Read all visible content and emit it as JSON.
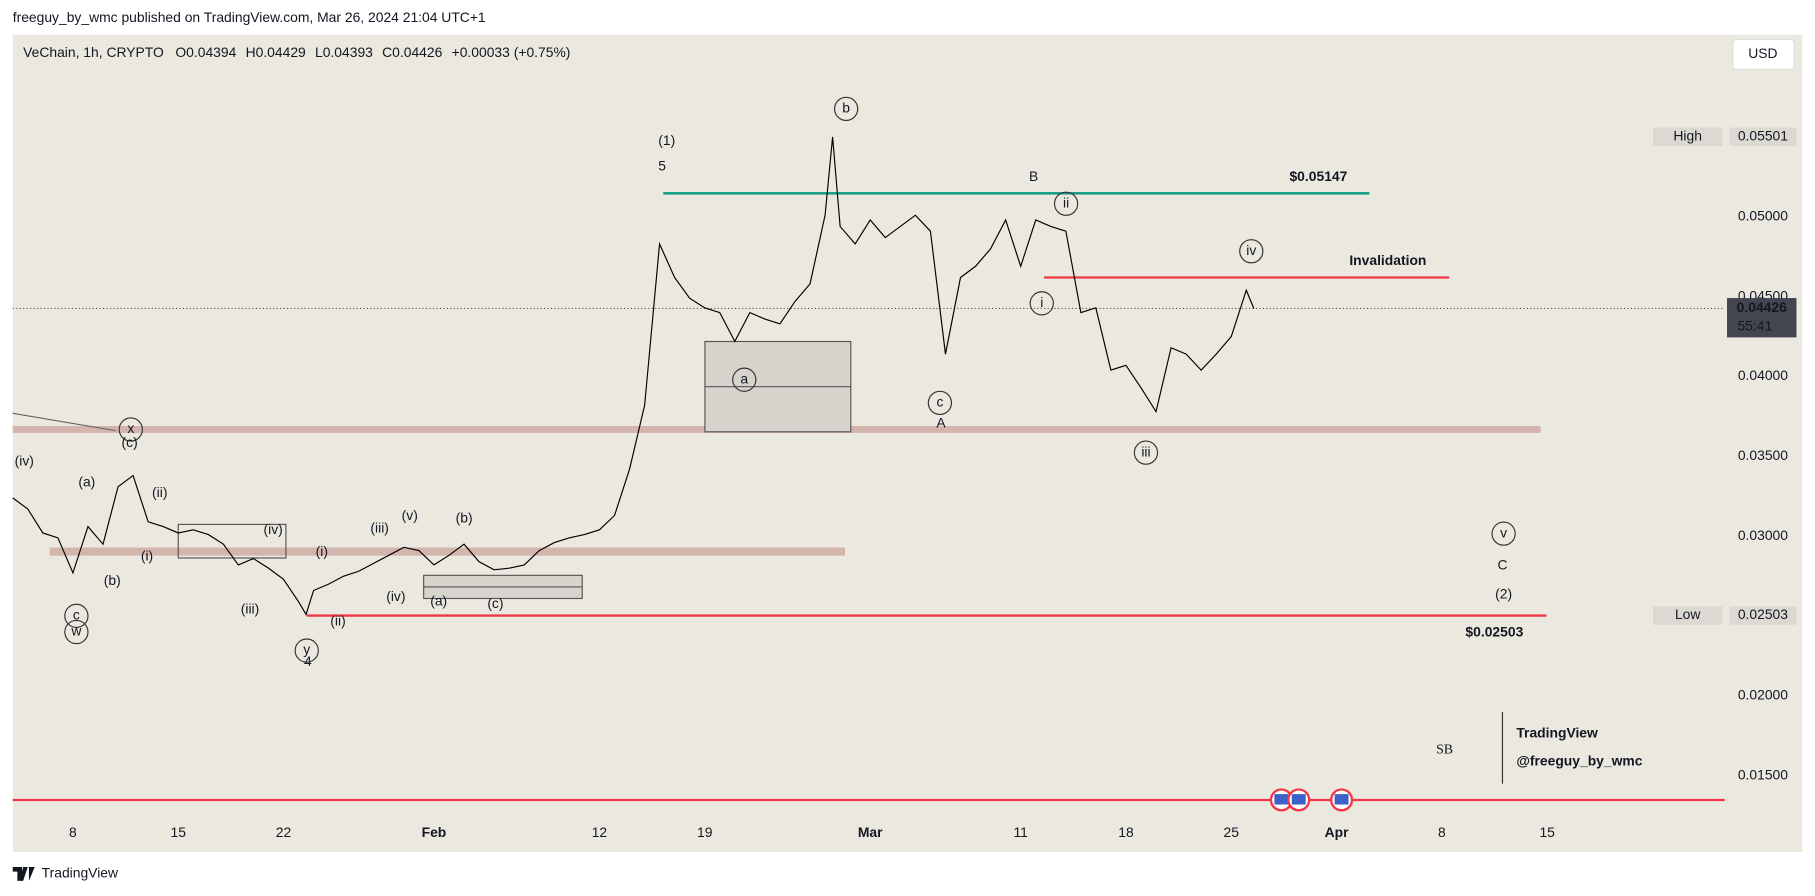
{
  "header": "freeguy_by_wmc published on TradingView.com, Mar 26, 2024 21:04 UTC+1",
  "footer": "TradingView",
  "chart_data": {
    "type": "line",
    "symbol": "VeChain, 1h, CRYPTO",
    "ohlc": [
      "O0.04394",
      "H0.04429",
      "L0.04393",
      "C0.04426",
      "+0.00033 (+0.75%)"
    ],
    "currency": "USD",
    "x": [
      4,
      5,
      6,
      7,
      8,
      9,
      10,
      11,
      12,
      13,
      14,
      15,
      16,
      17,
      18,
      19,
      20,
      21,
      22,
      23,
      23.5,
      24,
      25,
      26,
      27,
      28,
      29,
      30,
      31,
      32,
      33,
      34,
      35,
      36,
      37,
      38,
      39,
      40,
      41,
      42,
      43,
      44,
      45,
      46,
      47,
      48,
      49,
      50,
      51,
      52,
      53,
      54,
      55,
      56,
      57,
      58,
      58.5,
      59,
      60,
      61,
      62,
      63,
      64,
      65,
      66,
      67,
      68,
      69,
      70,
      71,
      72,
      73,
      74,
      75,
      76,
      77,
      78,
      79,
      80,
      81,
      82,
      83,
      84,
      85,
      86,
      86.5
    ],
    "series": [
      {
        "color": "#000000",
        "values": [
          0.0324,
          0.0317,
          0.0302,
          0.0299,
          0.0277,
          0.0306,
          0.0295,
          0.0331,
          0.0338,
          0.0309,
          0.0306,
          0.0302,
          0.0304,
          0.0301,
          0.0295,
          0.0282,
          0.0286,
          0.028,
          0.0273,
          0.0259,
          0.0251,
          0.0266,
          0.027,
          0.0275,
          0.0278,
          0.0283,
          0.0288,
          0.0293,
          0.0291,
          0.0282,
          0.0288,
          0.0295,
          0.0284,
          0.0279,
          0.028,
          0.0282,
          0.0291,
          0.0296,
          0.0299,
          0.0301,
          0.0304,
          0.0313,
          0.0342,
          0.0382,
          0.0483,
          0.0462,
          0.0449,
          0.0443,
          0.044,
          0.0422,
          0.044,
          0.0436,
          0.0433,
          0.0447,
          0.0458,
          0.0501,
          0.055,
          0.0494,
          0.0483,
          0.0498,
          0.0487,
          0.0494,
          0.0501,
          0.0491,
          0.0414,
          0.0462,
          0.0469,
          0.048,
          0.0498,
          0.0469,
          0.0498,
          0.0494,
          0.0491,
          0.044,
          0.0443,
          0.0404,
          0.0407,
          0.0393,
          0.0378,
          0.0418,
          0.0414,
          0.0404,
          0.0414,
          0.0425,
          0.0454,
          0.04426
        ]
      }
    ],
    "xlim": [
      4,
      117.8
    ],
    "ylim": [
      0.0124,
      0.0614
    ],
    "xticks": [
      {
        "value": 8,
        "label": "8"
      },
      {
        "value": 15,
        "label": "15"
      },
      {
        "value": 22,
        "label": "22"
      },
      {
        "value": 32,
        "label": "Feb"
      },
      {
        "value": 43,
        "label": "12"
      },
      {
        "value": 50,
        "label": "19"
      },
      {
        "value": 61,
        "label": "Mar"
      },
      {
        "value": 71,
        "label": "11"
      },
      {
        "value": 78,
        "label": "18"
      },
      {
        "value": 85,
        "label": "25"
      },
      {
        "value": 92,
        "label": "Apr"
      },
      {
        "value": 99,
        "label": "8"
      },
      {
        "value": 106,
        "label": "15"
      }
    ],
    "yticks": [
      {
        "value": 0.015,
        "label": "0.01500"
      },
      {
        "value": 0.02,
        "label": "0.02000"
      },
      {
        "value": 0.025,
        "label": "0.02500"
      },
      {
        "value": 0.03,
        "label": "0.03000"
      },
      {
        "value": 0.035,
        "label": "0.03500"
      },
      {
        "value": 0.04,
        "label": "0.04000"
      },
      {
        "value": 0.045,
        "label": "0.04500"
      },
      {
        "value": 0.05,
        "label": "0.05000"
      }
    ],
    "high": {
      "label": "High",
      "value": 0.05501
    },
    "low": {
      "label": "Low",
      "value": 0.02503
    },
    "last": {
      "value": 0.04426,
      "countdown": "55:41"
    },
    "levels": [
      {
        "value": 0.05147,
        "label": "$0.05147",
        "color": "#089981"
      },
      {
        "value": 0.0462,
        "label": "Invalidation",
        "color": "#f23645"
      },
      {
        "value": 0.02503,
        "label": "$0.02503",
        "color": "#f23645"
      },
      {
        "value": 0.01348,
        "color": "#f23645"
      }
    ],
    "annotations": [
      "(1)",
      "5",
      "(2)",
      "C",
      "B",
      "A",
      "4",
      "b",
      "a",
      "c",
      "ii",
      "i",
      "iii",
      "iv",
      "v",
      "x",
      "w",
      "y",
      "c",
      "(iv)",
      "(a)",
      "(c)",
      "(ii)",
      "(b)",
      "(i)",
      "(iii)",
      "(iv)",
      "(i)",
      "(ii)",
      "(iii)",
      "(v)",
      "(b)",
      "(iv)",
      "(a)",
      "(c)"
    ],
    "watermark": [
      "TradingView",
      "@freeguy_by_wmc"
    ]
  }
}
